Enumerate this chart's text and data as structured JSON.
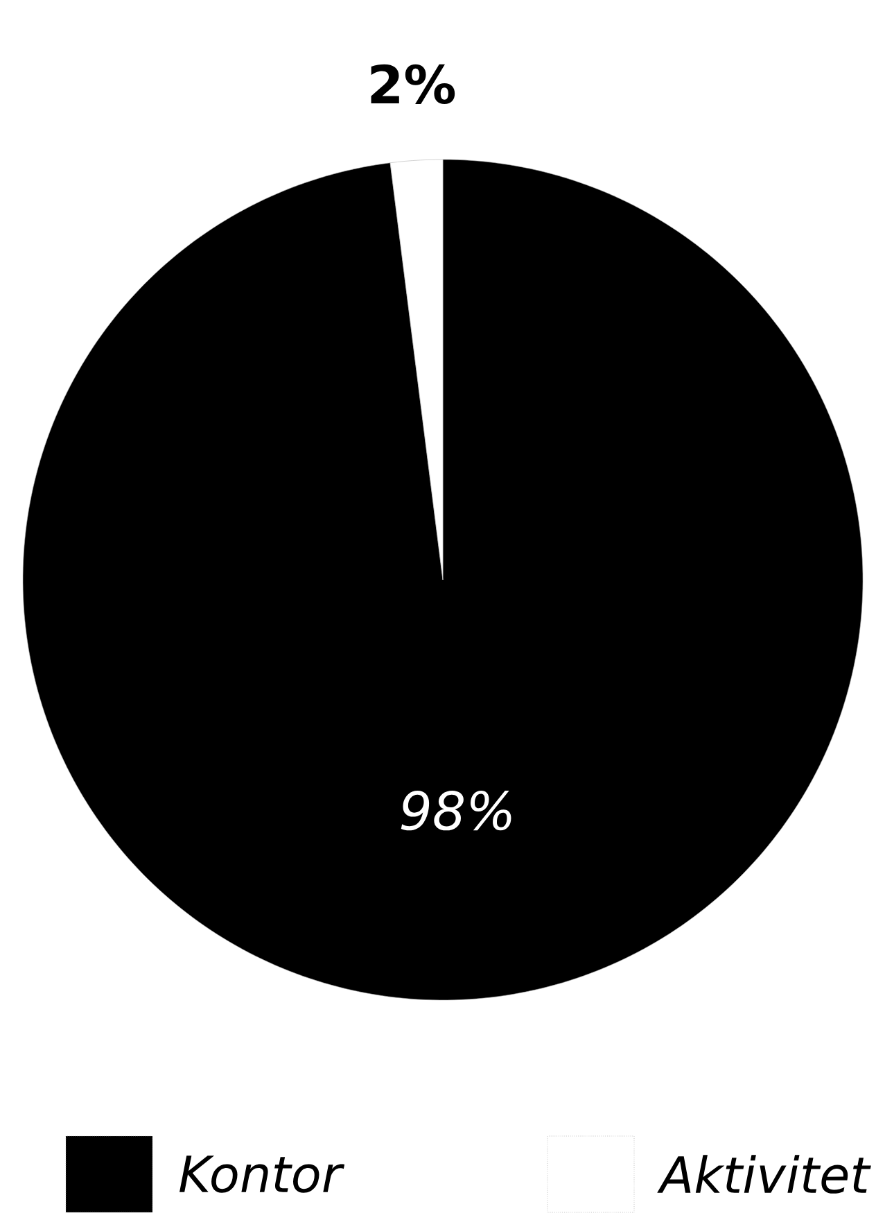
{
  "chart_data": {
    "type": "pie",
    "categories": [
      "Kontor",
      "Aktivitet"
    ],
    "values": [
      98,
      2
    ],
    "colors": [
      "#000000",
      "#ffffff"
    ],
    "value_labels": [
      "98%",
      "2%"
    ],
    "legend": "bottom"
  }
}
